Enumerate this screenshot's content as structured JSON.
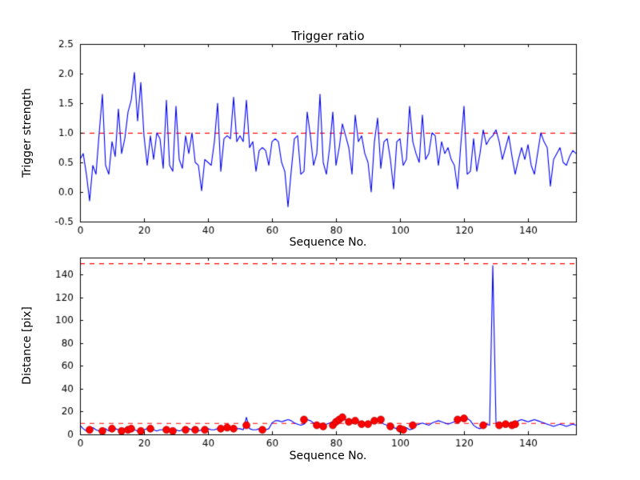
{
  "figure": {
    "background": "#ffffff",
    "frame_color": "#000000",
    "line_color": "#0000ff",
    "threshold_color": "#ff0000",
    "marker_color": "#ff0000"
  },
  "chart_data": [
    {
      "type": "line",
      "title": "Trigger ratio",
      "xlabel": "Sequence No.",
      "ylabel": "Trigger strength",
      "xlim": [
        0,
        155
      ],
      "ylim": [
        -0.5,
        2.5
      ],
      "grid": false,
      "legend": "none",
      "xticks": [
        0,
        20,
        40,
        60,
        80,
        100,
        120,
        140
      ],
      "xtick_labels": [
        "0",
        "20",
        "40",
        "60",
        "80",
        "100",
        "120",
        "140"
      ],
      "yticks": [
        -0.5,
        0.0,
        0.5,
        1.0,
        1.5,
        2.0,
        2.5
      ],
      "ytick_labels": [
        "-0.5",
        "0.0",
        "0.5",
        "1.0",
        "1.5",
        "2.0",
        "2.5"
      ],
      "reference_lines": [
        {
          "name": "trigger-threshold",
          "y": 1.0,
          "color": "#ff0000",
          "style": "dashed"
        }
      ],
      "series": [
        {
          "name": "trigger-strength",
          "color": "#0000ff",
          "x_start": 0,
          "x_step": 1,
          "values": [
            0.55,
            0.65,
            0.3,
            -0.15,
            0.45,
            0.3,
            1.0,
            1.65,
            0.45,
            0.3,
            0.85,
            0.6,
            1.4,
            0.65,
            0.9,
            1.35,
            1.55,
            2.02,
            1.2,
            1.85,
            0.95,
            0.45,
            0.95,
            0.55,
            1.0,
            0.9,
            0.4,
            1.55,
            0.45,
            0.35,
            1.45,
            0.55,
            0.4,
            0.95,
            0.65,
            1.0,
            0.5,
            0.45,
            0.02,
            0.55,
            0.5,
            0.45,
            0.85,
            1.5,
            0.35,
            0.9,
            0.95,
            0.9,
            1.6,
            0.85,
            0.95,
            0.85,
            1.55,
            0.75,
            0.85,
            0.35,
            0.7,
            0.75,
            0.7,
            0.45,
            0.85,
            0.9,
            0.85,
            0.5,
            0.35,
            -0.25,
            0.35,
            0.9,
            0.95,
            0.3,
            0.35,
            1.35,
            0.95,
            0.45,
            0.65,
            1.65,
            0.5,
            0.3,
            0.75,
            1.35,
            0.45,
            0.75,
            1.15,
            0.95,
            0.75,
            0.3,
            1.3,
            0.85,
            0.95,
            0.65,
            0.5,
            0.0,
            0.85,
            1.25,
            0.4,
            0.85,
            0.9,
            0.55,
            0.05,
            0.85,
            0.9,
            0.45,
            0.55,
            1.45,
            0.85,
            0.65,
            0.5,
            1.3,
            0.55,
            0.65,
            1.0,
            0.95,
            0.45,
            0.85,
            0.65,
            0.75,
            0.55,
            0.45,
            0.05,
            0.8,
            1.45,
            0.3,
            0.35,
            0.9,
            0.35,
            0.65,
            1.05,
            0.8,
            0.9,
            0.95,
            1.05,
            0.85,
            0.55,
            0.75,
            0.95,
            0.6,
            0.3,
            0.55,
            0.75,
            0.55,
            0.8,
            0.45,
            0.3,
            0.65,
            1.0,
            0.85,
            0.75,
            0.1,
            0.55,
            0.65,
            0.75,
            0.5,
            0.45,
            0.6,
            0.7,
            0.65
          ]
        }
      ]
    },
    {
      "type": "line",
      "title": "",
      "xlabel": "Sequence No.",
      "ylabel": "Distance [pix]",
      "xlim": [
        0,
        155
      ],
      "ylim": [
        0,
        155
      ],
      "grid": false,
      "legend": "none",
      "xticks": [
        0,
        20,
        40,
        60,
        80,
        100,
        120,
        140
      ],
      "xtick_labels": [
        "0",
        "20",
        "40",
        "60",
        "80",
        "100",
        "120",
        "140"
      ],
      "yticks": [
        0,
        20,
        40,
        60,
        80,
        100,
        120,
        140
      ],
      "ytick_labels": [
        "0",
        "20",
        "40",
        "60",
        "80",
        "100",
        "120",
        "140"
      ],
      "reference_lines": [
        {
          "name": "upper-distance-threshold",
          "y": 150,
          "color": "#ff0000",
          "style": "dashed"
        },
        {
          "name": "lower-distance-threshold",
          "y": 10,
          "color": "#ff0000",
          "style": "dashed"
        }
      ],
      "series": [
        {
          "name": "distance",
          "color": "#0000ff",
          "x_start": 0,
          "x_step": 1,
          "values": [
            8,
            5,
            3,
            4,
            6,
            4,
            3,
            4,
            5,
            3,
            4,
            5,
            4,
            3,
            5,
            4,
            5,
            4,
            3,
            3,
            4,
            5,
            5,
            4,
            3,
            4,
            4,
            3,
            4,
            3,
            4,
            3,
            4,
            4,
            5,
            4,
            4,
            3,
            4,
            4,
            5,
            4,
            4,
            5,
            6,
            6,
            6,
            5,
            6,
            5,
            5,
            4,
            15,
            5,
            4,
            4,
            5,
            4,
            4,
            5,
            10,
            12,
            12,
            11,
            12,
            13,
            12,
            10,
            9,
            8,
            9,
            13,
            12,
            10,
            8,
            7,
            8,
            9,
            10,
            11,
            12,
            13,
            15,
            13,
            11,
            12,
            13,
            11,
            9,
            8,
            9,
            10,
            12,
            13,
            11,
            9,
            8,
            7,
            6,
            5,
            4,
            5,
            6,
            4,
            5,
            8,
            9,
            10,
            9,
            8,
            10,
            11,
            12,
            11,
            10,
            9,
            10,
            11,
            13,
            14,
            15,
            14,
            12,
            8,
            6,
            5,
            7,
            9,
            8,
            148,
            10,
            8,
            9,
            10,
            9,
            8,
            9,
            12,
            13,
            12,
            11,
            12,
            13,
            12,
            11,
            10,
            9,
            8,
            7,
            8,
            9,
            8,
            7,
            8,
            9,
            8
          ]
        }
      ],
      "scatter": {
        "name": "trigger-points",
        "color": "#ff0000",
        "marker": "circle",
        "points": [
          [
            3,
            4
          ],
          [
            7,
            3
          ],
          [
            10,
            5
          ],
          [
            13,
            3
          ],
          [
            15,
            4
          ],
          [
            16,
            5
          ],
          [
            19,
            3
          ],
          [
            22,
            5
          ],
          [
            27,
            4
          ],
          [
            29,
            3
          ],
          [
            33,
            4
          ],
          [
            36,
            4
          ],
          [
            39,
            4
          ],
          [
            44,
            5
          ],
          [
            46,
            6
          ],
          [
            48,
            5
          ],
          [
            52,
            8
          ],
          [
            57,
            4
          ],
          [
            70,
            13
          ],
          [
            74,
            8
          ],
          [
            76,
            7
          ],
          [
            79,
            8
          ],
          [
            80,
            11
          ],
          [
            81,
            13
          ],
          [
            82,
            15
          ],
          [
            84,
            11
          ],
          [
            86,
            12
          ],
          [
            88,
            9
          ],
          [
            90,
            9
          ],
          [
            92,
            12
          ],
          [
            94,
            13
          ],
          [
            97,
            7
          ],
          [
            100,
            5
          ],
          [
            101,
            4
          ],
          [
            104,
            8
          ],
          [
            118,
            13
          ],
          [
            120,
            14
          ],
          [
            126,
            8
          ],
          [
            131,
            8
          ],
          [
            133,
            9
          ],
          [
            135,
            8
          ],
          [
            136,
            9
          ]
        ]
      }
    }
  ]
}
